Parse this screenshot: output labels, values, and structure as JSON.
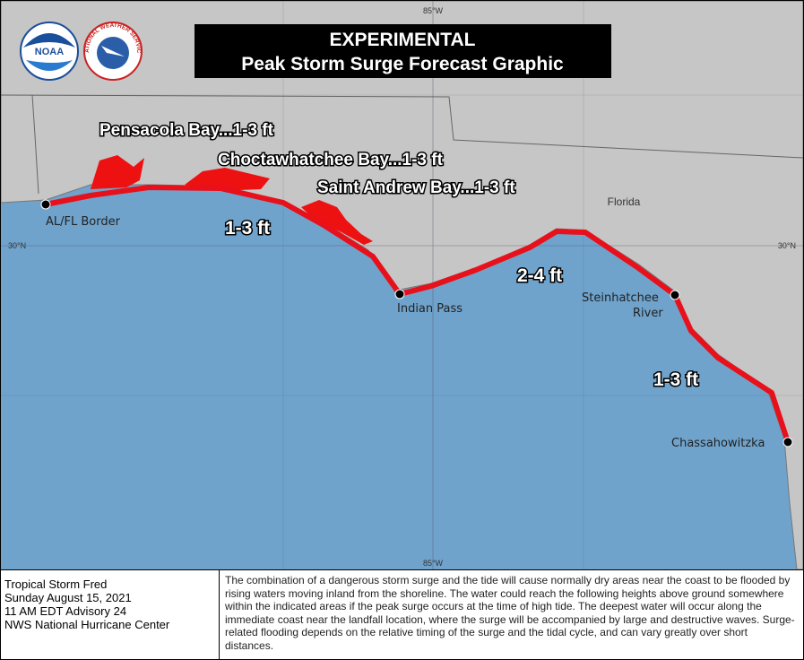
{
  "header": {
    "logos": [
      "NOAA",
      "NATIONAL WEATHER SERVICE"
    ],
    "title_lines": [
      "EXPERIMENTAL",
      "Peak Storm Surge Forecast Graphic"
    ]
  },
  "map": {
    "grid_labels": {
      "lon_top": "85°W",
      "lon_bottom": "85°W",
      "lat_left": "30°N",
      "lat_right": "30°N"
    },
    "state_label": "Florida",
    "areas": [
      "Pensacola Bay...1-3 ft",
      "Choctawhatchee Bay...1-3 ft",
      "Saint  Andrew Bay...1-3 ft"
    ],
    "segments": [
      "1-3 ft",
      "2-4 ft",
      "1-3 ft"
    ],
    "points": [
      {
        "lines": [
          "AL/FL Border"
        ]
      },
      {
        "lines": [
          "Indian Pass"
        ]
      },
      {
        "lines": [
          "Steinhatchee",
          "River"
        ]
      },
      {
        "lines": [
          "Chassahowitzka"
        ]
      }
    ]
  },
  "footer": {
    "storm_lines": [
      "Tropical Storm Fred",
      "Sunday August 15, 2021",
      "11 AM EDT Advisory 24",
      "NWS National Hurricane Center"
    ],
    "description": "The combination of a dangerous storm surge and the tide will cause normally dry areas near the coast to be flooded by rising waters moving inland from the shoreline.  The water could reach the following heights above ground somewhere within the indicated areas if the peak surge occurs at the time of high tide.  The deepest water will occur along the immediate coast near the landfall location, where the surge will be accompanied by large and destructive waves.  Surge-related flooding depends on the relative timing of the surge and the tidal cycle, and can vary greatly over short distances."
  }
}
